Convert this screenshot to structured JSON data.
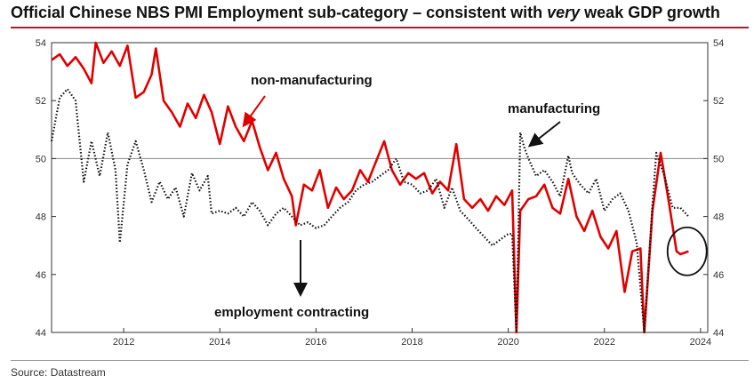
{
  "title_parts": {
    "pre": "Official Chinese NBS PMI Employment sub-category – consistent with ",
    "em": "very",
    "post": " weak GDP growth"
  },
  "source": "Source: Datastream",
  "colors": {
    "non_manufacturing": "#e10000",
    "manufacturing": "#111111",
    "title_rule": "#c8102e"
  },
  "annotations": {
    "non_manufacturing": "non-manufacturing",
    "manufacturing": "manufacturing",
    "employment_contracting": "employment contracting"
  },
  "chart_data": {
    "type": "line",
    "title": "Official Chinese NBS PMI Employment sub-category – consistent with very weak GDP growth",
    "xlabel": "",
    "ylabel": "",
    "xlim": [
      2010.5,
      2024.15
    ],
    "ylim": [
      44,
      54
    ],
    "x_ticks": [
      2012,
      2014,
      2016,
      2018,
      2020,
      2022,
      2024
    ],
    "y_ticks": [
      44,
      46,
      48,
      50,
      52,
      54
    ],
    "reference_line": 50,
    "grid": false,
    "legend": "none",
    "series": [
      {
        "key": "non_manufacturing",
        "style": "solid",
        "points": [
          [
            2010.5,
            53.4
          ],
          [
            2010.67,
            53.6
          ],
          [
            2010.83,
            53.2
          ],
          [
            2011.0,
            53.5
          ],
          [
            2011.17,
            53.1
          ],
          [
            2011.33,
            52.6
          ],
          [
            2011.42,
            54.0
          ],
          [
            2011.58,
            53.3
          ],
          [
            2011.75,
            53.7
          ],
          [
            2011.92,
            53.2
          ],
          [
            2012.08,
            53.9
          ],
          [
            2012.25,
            52.1
          ],
          [
            2012.42,
            52.3
          ],
          [
            2012.58,
            52.9
          ],
          [
            2012.67,
            53.8
          ],
          [
            2012.83,
            52.0
          ],
          [
            2013.0,
            51.6
          ],
          [
            2013.17,
            51.1
          ],
          [
            2013.33,
            51.9
          ],
          [
            2013.5,
            51.4
          ],
          [
            2013.67,
            52.2
          ],
          [
            2013.83,
            51.6
          ],
          [
            2014.0,
            50.5
          ],
          [
            2014.17,
            51.8
          ],
          [
            2014.33,
            51.1
          ],
          [
            2014.5,
            50.6
          ],
          [
            2014.67,
            51.3
          ],
          [
            2014.83,
            50.4
          ],
          [
            2015.0,
            49.6
          ],
          [
            2015.17,
            50.2
          ],
          [
            2015.33,
            49.3
          ],
          [
            2015.5,
            48.7
          ],
          [
            2015.58,
            47.7
          ],
          [
            2015.75,
            49.1
          ],
          [
            2015.92,
            48.9
          ],
          [
            2016.08,
            49.6
          ],
          [
            2016.25,
            48.3
          ],
          [
            2016.42,
            49.0
          ],
          [
            2016.58,
            48.6
          ],
          [
            2016.75,
            48.9
          ],
          [
            2016.92,
            49.6
          ],
          [
            2017.08,
            49.2
          ],
          [
            2017.25,
            49.9
          ],
          [
            2017.42,
            50.6
          ],
          [
            2017.58,
            49.6
          ],
          [
            2017.75,
            49.1
          ],
          [
            2017.92,
            49.5
          ],
          [
            2018.08,
            49.3
          ],
          [
            2018.25,
            49.5
          ],
          [
            2018.42,
            48.8
          ],
          [
            2018.58,
            49.2
          ],
          [
            2018.75,
            48.9
          ],
          [
            2018.92,
            50.5
          ],
          [
            2019.08,
            48.6
          ],
          [
            2019.25,
            48.3
          ],
          [
            2019.42,
            48.6
          ],
          [
            2019.58,
            48.2
          ],
          [
            2019.75,
            48.7
          ],
          [
            2019.92,
            48.4
          ],
          [
            2020.08,
            48.9
          ],
          [
            2020.17,
            44.0
          ],
          [
            2020.25,
            48.2
          ],
          [
            2020.42,
            48.6
          ],
          [
            2020.58,
            48.7
          ],
          [
            2020.75,
            49.1
          ],
          [
            2020.92,
            48.3
          ],
          [
            2021.08,
            48.1
          ],
          [
            2021.25,
            49.3
          ],
          [
            2021.42,
            48.0
          ],
          [
            2021.58,
            47.5
          ],
          [
            2021.75,
            48.2
          ],
          [
            2021.92,
            47.3
          ],
          [
            2022.08,
            46.9
          ],
          [
            2022.25,
            47.5
          ],
          [
            2022.42,
            45.4
          ],
          [
            2022.58,
            46.8
          ],
          [
            2022.75,
            46.9
          ],
          [
            2022.83,
            44.0
          ],
          [
            2023.0,
            48.2
          ],
          [
            2023.17,
            50.2
          ],
          [
            2023.33,
            48.6
          ],
          [
            2023.5,
            46.8
          ],
          [
            2023.58,
            46.7
          ],
          [
            2023.75,
            46.8
          ]
        ]
      },
      {
        "key": "manufacturing",
        "style": "dotted",
        "points": [
          [
            2010.5,
            50.6
          ],
          [
            2010.67,
            52.1
          ],
          [
            2010.83,
            52.4
          ],
          [
            2011.0,
            52.0
          ],
          [
            2011.17,
            49.2
          ],
          [
            2011.33,
            50.6
          ],
          [
            2011.5,
            49.4
          ],
          [
            2011.67,
            50.9
          ],
          [
            2011.83,
            49.6
          ],
          [
            2011.92,
            47.1
          ],
          [
            2012.08,
            49.8
          ],
          [
            2012.25,
            50.6
          ],
          [
            2012.42,
            49.6
          ],
          [
            2012.58,
            48.5
          ],
          [
            2012.75,
            49.2
          ],
          [
            2012.92,
            48.6
          ],
          [
            2013.08,
            49.0
          ],
          [
            2013.25,
            48.0
          ],
          [
            2013.42,
            49.5
          ],
          [
            2013.58,
            48.9
          ],
          [
            2013.75,
            49.4
          ],
          [
            2013.83,
            48.1
          ],
          [
            2014.0,
            48.2
          ],
          [
            2014.17,
            48.1
          ],
          [
            2014.33,
            48.3
          ],
          [
            2014.5,
            48.0
          ],
          [
            2014.67,
            48.5
          ],
          [
            2014.83,
            48.2
          ],
          [
            2015.0,
            47.7
          ],
          [
            2015.17,
            48.1
          ],
          [
            2015.33,
            48.3
          ],
          [
            2015.5,
            48.0
          ],
          [
            2015.67,
            47.7
          ],
          [
            2015.83,
            47.8
          ],
          [
            2016.0,
            47.6
          ],
          [
            2016.17,
            47.7
          ],
          [
            2016.33,
            48.0
          ],
          [
            2016.5,
            48.3
          ],
          [
            2016.67,
            48.5
          ],
          [
            2016.83,
            48.9
          ],
          [
            2017.0,
            49.1
          ],
          [
            2017.17,
            49.2
          ],
          [
            2017.33,
            49.4
          ],
          [
            2017.5,
            49.6
          ],
          [
            2017.67,
            50.0
          ],
          [
            2017.83,
            49.2
          ],
          [
            2018.0,
            49.1
          ],
          [
            2018.17,
            48.8
          ],
          [
            2018.33,
            48.9
          ],
          [
            2018.5,
            49.3
          ],
          [
            2018.67,
            48.3
          ],
          [
            2018.83,
            49.0
          ],
          [
            2019.0,
            48.2
          ],
          [
            2019.17,
            47.9
          ],
          [
            2019.33,
            47.6
          ],
          [
            2019.5,
            47.3
          ],
          [
            2019.67,
            47.0
          ],
          [
            2019.83,
            47.2
          ],
          [
            2020.0,
            47.4
          ],
          [
            2020.08,
            47.4
          ],
          [
            2020.17,
            44.0
          ],
          [
            2020.25,
            50.9
          ],
          [
            2020.33,
            50.4
          ],
          [
            2020.42,
            50.0
          ],
          [
            2020.58,
            49.4
          ],
          [
            2020.75,
            49.6
          ],
          [
            2020.92,
            49.2
          ],
          [
            2021.08,
            48.7
          ],
          [
            2021.25,
            50.1
          ],
          [
            2021.33,
            49.5
          ],
          [
            2021.5,
            49.1
          ],
          [
            2021.67,
            48.8
          ],
          [
            2021.83,
            49.3
          ],
          [
            2022.0,
            48.2
          ],
          [
            2022.17,
            48.6
          ],
          [
            2022.33,
            48.8
          ],
          [
            2022.5,
            48.2
          ],
          [
            2022.67,
            47.1
          ],
          [
            2022.83,
            44.0
          ],
          [
            2023.0,
            48.4
          ],
          [
            2023.08,
            50.2
          ],
          [
            2023.25,
            49.4
          ],
          [
            2023.42,
            48.3
          ],
          [
            2023.58,
            48.3
          ],
          [
            2023.75,
            48.0
          ]
        ]
      }
    ]
  }
}
